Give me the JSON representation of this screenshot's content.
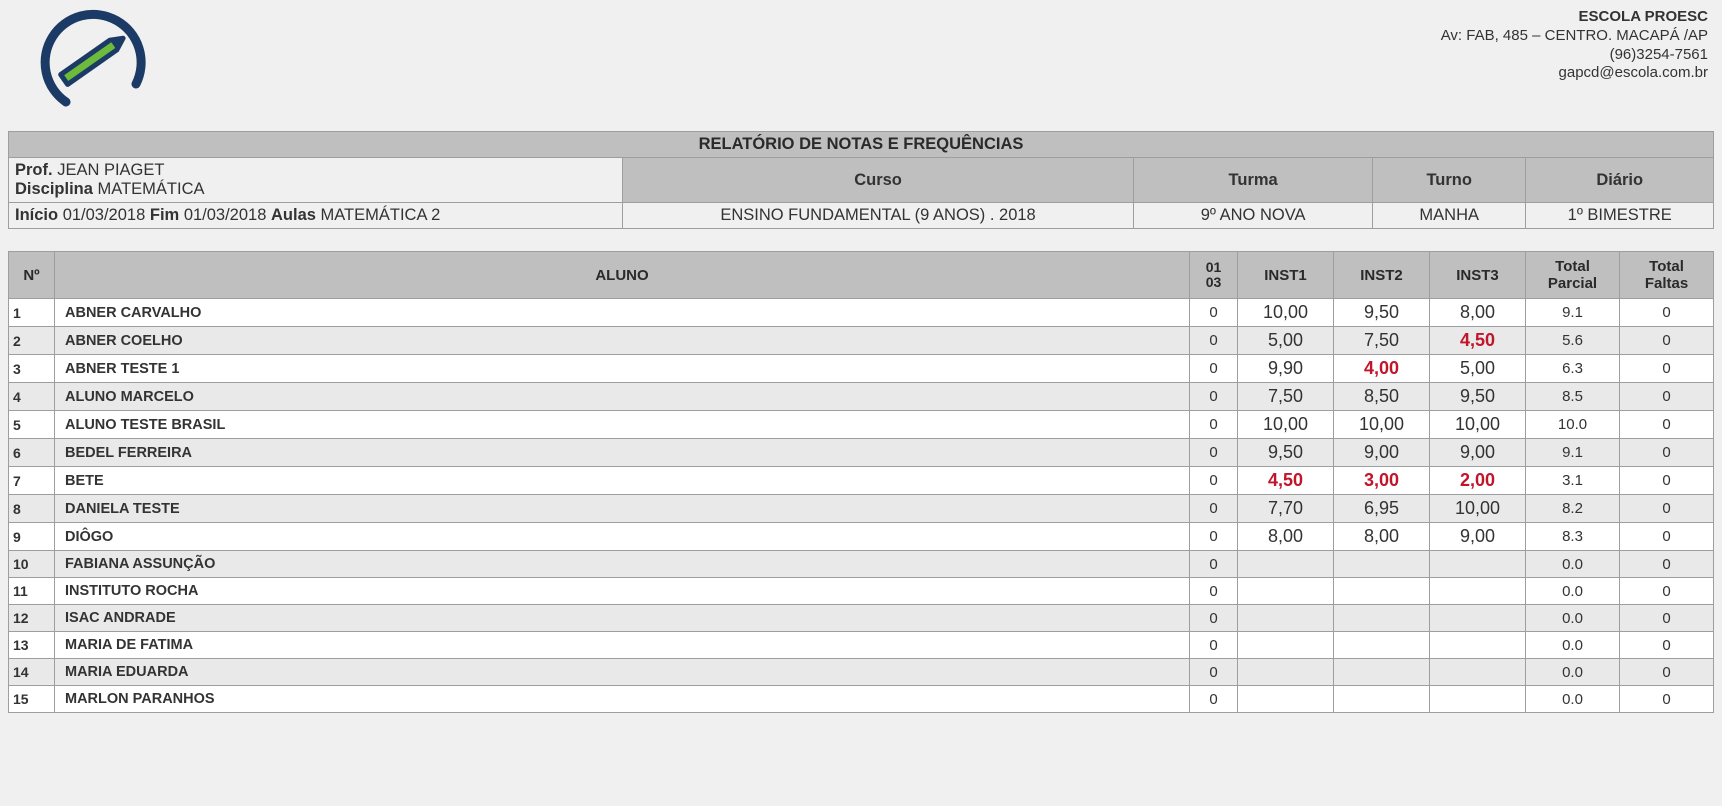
{
  "school": {
    "name": "ESCOLA PROESC",
    "address": "Av: FAB, 485 – CENTRO. MACAPÁ /AP",
    "phone": "(96)3254-7561",
    "email": "gapcd@escola.com.br"
  },
  "report_title": "RELATÓRIO DE NOTAS E FREQUÊNCIAS",
  "labels": {
    "prof": "Prof.",
    "disciplina": "Disciplina",
    "curso": "Curso",
    "turma": "Turma",
    "turno": "Turno",
    "diario": "Diário",
    "inicio": "Início",
    "fim": "Fim",
    "aulas": "Aulas"
  },
  "meta": {
    "prof": "JEAN PIAGET",
    "disciplina": "MATEMÁTICA",
    "curso": "ENSINO FUNDAMENTAL (9 ANOS) . 2018",
    "turma": "9º ANO NOVA",
    "turno": "MANHA",
    "diario": "1º BIMESTRE",
    "inicio": "01/03/2018",
    "fim": "01/03/2018",
    "aulas": "MATEMÁTICA 2"
  },
  "columns": {
    "no": "Nº",
    "aluno": "ALUNO",
    "date_top": "01",
    "date_bottom": "03",
    "inst1": "INST1",
    "inst2": "INST2",
    "inst3": "INST3",
    "total_parcial_l1": "Total",
    "total_parcial_l2": "Parcial",
    "total_faltas_l1": "Total",
    "total_faltas_l2": "Faltas"
  },
  "fail_threshold": 5.0,
  "rows": [
    {
      "n": "1",
      "name": "ABNER CARVALHO",
      "d": "0",
      "g": [
        "10,00",
        "9,50",
        "8,00"
      ],
      "tp": "9.1",
      "tf": "0"
    },
    {
      "n": "2",
      "name": "ABNER COELHO",
      "d": "0",
      "g": [
        "5,00",
        "7,50",
        "4,50"
      ],
      "tp": "5.6",
      "tf": "0"
    },
    {
      "n": "3",
      "name": "ABNER TESTE 1",
      "d": "0",
      "g": [
        "9,90",
        "4,00",
        "5,00"
      ],
      "tp": "6.3",
      "tf": "0"
    },
    {
      "n": "4",
      "name": "ALUNO MARCELO",
      "d": "0",
      "g": [
        "7,50",
        "8,50",
        "9,50"
      ],
      "tp": "8.5",
      "tf": "0"
    },
    {
      "n": "5",
      "name": "ALUNO TESTE BRASIL",
      "d": "0",
      "g": [
        "10,00",
        "10,00",
        "10,00"
      ],
      "tp": "10.0",
      "tf": "0"
    },
    {
      "n": "6",
      "name": "BEDEL FERREIRA",
      "d": "0",
      "g": [
        "9,50",
        "9,00",
        "9,00"
      ],
      "tp": "9.1",
      "tf": "0"
    },
    {
      "n": "7",
      "name": "BETE",
      "d": "0",
      "g": [
        "4,50",
        "3,00",
        "2,00"
      ],
      "tp": "3.1",
      "tf": "0"
    },
    {
      "n": "8",
      "name": "DANIELA TESTE",
      "d": "0",
      "g": [
        "7,70",
        "6,95",
        "10,00"
      ],
      "tp": "8.2",
      "tf": "0"
    },
    {
      "n": "9",
      "name": "DIÔGO",
      "d": "0",
      "g": [
        "8,00",
        "8,00",
        "9,00"
      ],
      "tp": "8.3",
      "tf": "0"
    },
    {
      "n": "10",
      "name": "FABIANA ASSUNÇÃO",
      "d": "0",
      "g": [
        "",
        "",
        ""
      ],
      "tp": "0.0",
      "tf": "0"
    },
    {
      "n": "11",
      "name": "INSTITUTO ROCHA",
      "d": "0",
      "g": [
        "",
        "",
        ""
      ],
      "tp": "0.0",
      "tf": "0"
    },
    {
      "n": "12",
      "name": "ISAC ANDRADE",
      "d": "0",
      "g": [
        "",
        "",
        ""
      ],
      "tp": "0.0",
      "tf": "0"
    },
    {
      "n": "13",
      "name": "MARIA DE FATIMA",
      "d": "0",
      "g": [
        "",
        "",
        ""
      ],
      "tp": "0.0",
      "tf": "0"
    },
    {
      "n": "14",
      "name": "MARIA EDUARDA",
      "d": "0",
      "g": [
        "",
        "",
        ""
      ],
      "tp": "0.0",
      "tf": "0"
    },
    {
      "n": "15",
      "name": "MARLON PARANHOS",
      "d": "0",
      "g": [
        "",
        "",
        ""
      ],
      "tp": "0.0",
      "tf": "0"
    }
  ],
  "logo_colors": {
    "stroke": "#1c3a66",
    "accent": "#6cbb3c"
  }
}
